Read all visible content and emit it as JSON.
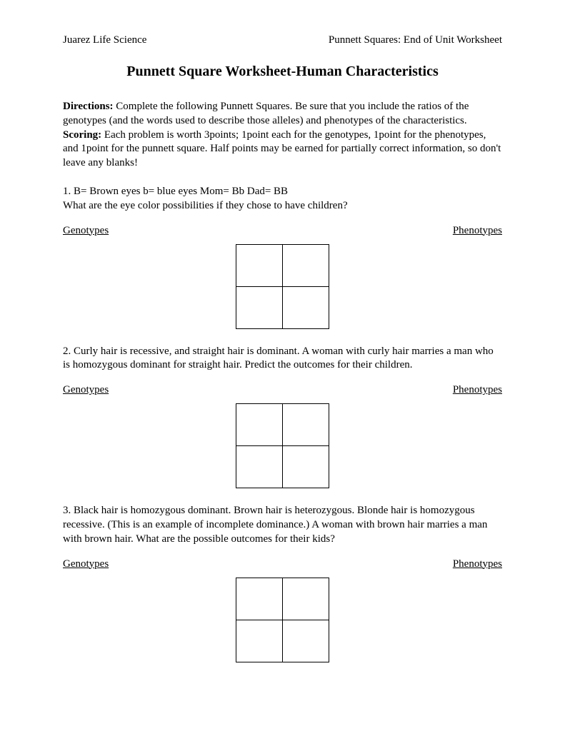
{
  "header": {
    "left": "Juarez Life Science",
    "right": "Punnett Squares: End of Unit Worksheet"
  },
  "title": "Punnett Square Worksheet-Human Characteristics",
  "directions": {
    "label": "Directions:",
    "text": "  Complete the following Punnett Squares.  Be sure that you include the ratios of the genotypes (and the words used to describe those alleles) and phenotypes of the characteristics."
  },
  "scoring": {
    "label": "Scoring:",
    "text": " Each problem is worth 3points; 1point each for the genotypes, 1point for the phenotypes, and 1point for the punnett square. Half points may be earned for partially correct information, so don't leave any blanks!"
  },
  "labels": {
    "genotypes": "Genotypes",
    "phenotypes": "Phenotypes"
  },
  "problems": [
    {
      "text": "1.  B= Brown eyes   b= blue eyes   Mom= Bb    Dad= BB\nWhat are the eye color possibilities if they chose to have children?"
    },
    {
      "text": "2. Curly hair is recessive, and straight hair is dominant.  A woman with curly hair marries a man who is homozygous dominant for straight hair.  Predict the outcomes for their children."
    },
    {
      "text": "3.  Black hair is homozygous dominant.  Brown hair is heterozygous.  Blonde hair is homozygous recessive.  (This is an example of incomplete dominance.)  A woman with brown hair marries a man with brown hair.  What are the possible outcomes for their kids?"
    }
  ],
  "style": {
    "text_color": "#000000",
    "background_color": "#ffffff",
    "body_fontsize": 15,
    "title_fontsize": 20,
    "punnett_cell_width": 62,
    "punnett_cell_height": 56,
    "punnett_border_width": 1
  }
}
